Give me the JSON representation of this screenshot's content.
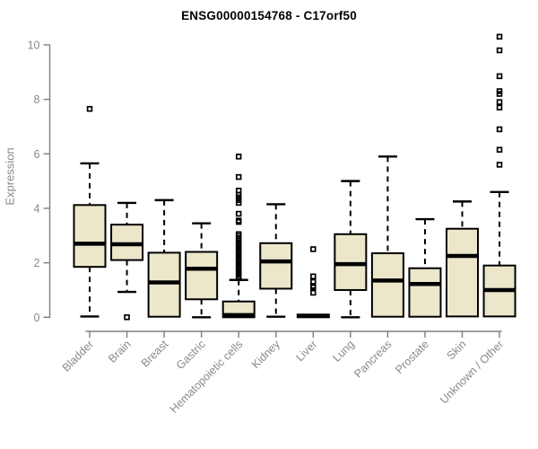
{
  "chart_data": {
    "type": "boxplot",
    "title": "ENSG00000154768 - C17orf50",
    "ylabel": "Expression",
    "xlabel": "",
    "ylim": [
      0,
      10
    ],
    "yticks": [
      0,
      2,
      4,
      6,
      8,
      10
    ],
    "grid": false,
    "legend": "none",
    "box_fill": "#ece7cb",
    "box_stroke": "#000000",
    "axis_color": "#7f7f7f",
    "label_color": "#898989",
    "categories": [
      "Bladder",
      "Brain",
      "Breast",
      "Gastric",
      "Hematopoietic cells",
      "Kidney",
      "Liver",
      "Lung",
      "Pancreas",
      "Prostate",
      "Skin",
      "Unknown / Other"
    ],
    "boxes": [
      {
        "category": "Bladder",
        "whisker_low": 0.03,
        "q1": 1.85,
        "median": 2.7,
        "q3": 4.12,
        "whisker_high": 5.65,
        "outliers": [
          7.65
        ]
      },
      {
        "category": "Brain",
        "whisker_low": 0.93,
        "q1": 2.1,
        "median": 2.68,
        "q3": 3.4,
        "whisker_high": 4.2,
        "outliers": [
          0.0
        ]
      },
      {
        "category": "Breast",
        "whisker_low": null,
        "q1": 0.02,
        "median": 1.28,
        "q3": 2.37,
        "whisker_high": 4.3,
        "outliers": []
      },
      {
        "category": "Gastric",
        "whisker_low": 0.0,
        "q1": 0.66,
        "median": 1.78,
        "q3": 2.4,
        "whisker_high": 3.45,
        "outliers": []
      },
      {
        "category": "Hematopoietic cells",
        "whisker_low": null,
        "q1": 0.0,
        "median": 0.08,
        "q3": 0.58,
        "whisker_high": 1.37,
        "outliers": [
          5.9,
          5.15,
          4.65,
          4.5,
          4.4,
          4.3,
          4.2,
          3.8,
          3.55,
          3.5,
          3.05,
          2.98,
          2.9,
          2.83,
          2.76,
          2.69,
          2.62,
          2.55,
          2.48,
          2.41,
          2.34,
          2.27,
          2.2,
          2.13,
          2.06,
          1.99,
          1.92,
          1.85,
          1.78,
          1.71,
          1.64,
          1.57,
          1.5,
          1.45
        ]
      },
      {
        "category": "Kidney",
        "whisker_low": 0.02,
        "q1": 1.05,
        "median": 2.05,
        "q3": 2.72,
        "whisker_high": 4.15,
        "outliers": []
      },
      {
        "category": "Liver",
        "whisker_low": null,
        "q1": 0.0,
        "median": 0.05,
        "q3": 0.1,
        "whisker_high": null,
        "outliers": [
          2.5,
          1.5,
          1.3,
          1.15,
          1.1,
          0.9
        ]
      },
      {
        "category": "Lung",
        "whisker_low": 0.0,
        "q1": 1.0,
        "median": 1.95,
        "q3": 3.05,
        "whisker_high": 5.0,
        "outliers": []
      },
      {
        "category": "Pancreas",
        "whisker_low": null,
        "q1": 0.02,
        "median": 1.35,
        "q3": 2.35,
        "whisker_high": 5.9,
        "outliers": []
      },
      {
        "category": "Prostate",
        "whisker_low": null,
        "q1": 0.02,
        "median": 1.22,
        "q3": 1.8,
        "whisker_high": 3.6,
        "outliers": []
      },
      {
        "category": "Skin",
        "whisker_low": null,
        "q1": 0.03,
        "median": 2.25,
        "q3": 3.25,
        "whisker_high": 4.25,
        "outliers": []
      },
      {
        "category": "Unknown / Other",
        "whisker_low": null,
        "q1": 0.03,
        "median": 1.0,
        "q3": 1.9,
        "whisker_high": 4.6,
        "outliers": [
          5.6,
          6.15,
          6.9,
          7.7,
          7.9,
          8.2,
          8.3,
          8.85,
          9.8,
          10.3
        ]
      }
    ]
  }
}
